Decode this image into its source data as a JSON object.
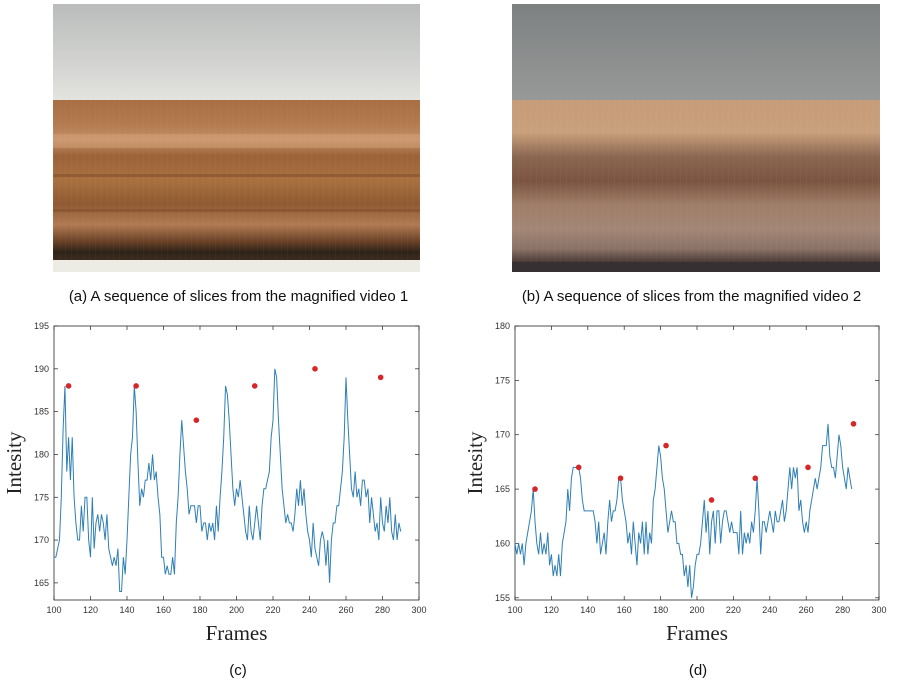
{
  "panels": {
    "a": {
      "caption": "(a) A sequence of slices from the magnified video 1"
    },
    "b": {
      "caption": "(b) A sequence of slices from the magnified video 2"
    },
    "c": {
      "caption": "(c)"
    },
    "d": {
      "caption": "(d)"
    }
  },
  "colors": {
    "line": "#2f7fb5",
    "peak": "#d62728",
    "axis": "#404040",
    "frame": "#262626"
  },
  "chart_data": [
    {
      "type": "line",
      "xlabel": "Frames",
      "ylabel": "Intesity",
      "xlim": [
        100,
        300
      ],
      "ylim": [
        163,
        195
      ],
      "xticks": [
        100,
        120,
        140,
        160,
        180,
        200,
        220,
        240,
        260,
        280,
        300
      ],
      "yticks": [
        165,
        170,
        175,
        180,
        185,
        190,
        195
      ],
      "grid": false,
      "x_start": 99,
      "values": [
        165,
        168,
        168,
        169,
        170,
        175,
        183,
        188,
        178,
        182,
        177,
        182,
        175,
        172,
        170,
        170,
        174,
        171,
        175,
        175,
        170,
        168,
        175,
        169,
        172,
        173,
        171,
        173,
        172,
        170,
        173,
        169,
        168,
        167,
        168,
        167,
        169,
        164,
        164,
        168,
        166,
        170,
        175,
        180,
        182,
        188,
        185,
        179,
        174,
        176,
        175,
        177,
        177,
        179,
        177,
        180,
        177,
        178,
        175,
        173,
        168,
        168,
        166,
        167,
        166,
        166,
        168,
        166,
        172,
        175,
        180,
        184,
        181,
        178,
        176,
        173,
        174,
        174,
        174,
        172,
        174,
        174,
        171,
        172,
        172,
        170,
        172,
        171,
        172,
        170,
        174,
        171,
        175,
        178,
        182,
        188,
        187,
        184,
        180,
        176,
        174,
        176,
        175,
        177,
        175,
        173,
        171,
        170,
        174,
        171,
        170,
        172,
        174,
        172,
        170,
        174,
        176,
        176,
        177,
        178,
        182,
        184,
        190,
        189,
        184,
        180,
        176,
        174,
        172,
        173,
        172,
        172,
        171,
        173,
        176,
        174,
        177,
        174,
        176,
        173,
        171,
        170,
        168,
        172,
        169,
        168,
        167,
        170,
        171,
        170,
        167,
        170,
        165,
        170,
        172,
        172,
        174,
        174,
        176,
        178,
        182,
        189,
        184,
        180,
        176,
        175,
        178,
        175,
        176,
        174,
        177,
        177,
        175,
        176,
        172,
        175,
        173,
        171,
        172,
        170,
        175,
        172,
        171,
        174,
        172,
        175,
        171,
        170,
        173,
        170,
        172,
        171
      ],
      "peaks": [
        [
          108,
          188
        ],
        [
          145,
          188
        ],
        [
          178,
          184
        ],
        [
          210,
          188
        ],
        [
          243,
          190
        ],
        [
          279,
          189
        ]
      ]
    },
    {
      "type": "line",
      "xlabel": "Frames",
      "ylabel": "Intesity",
      "xlim": [
        100,
        300
      ],
      "ylim": [
        154.8,
        180
      ],
      "xticks": [
        100,
        120,
        140,
        160,
        180,
        200,
        220,
        240,
        260,
        280,
        300
      ],
      "yticks": [
        155,
        160,
        165,
        170,
        175,
        180
      ],
      "grid": false,
      "x_start": 99,
      "values": [
        160,
        160,
        159,
        160,
        159,
        160,
        158,
        160,
        161,
        162,
        163,
        165,
        162,
        160,
        159,
        161,
        159,
        160,
        159,
        161,
        158,
        159,
        157,
        158,
        157,
        159,
        157,
        160,
        161,
        162,
        165,
        163,
        166,
        167,
        167,
        167,
        167,
        166,
        164,
        163,
        163,
        163,
        163,
        163,
        163,
        162,
        160,
        162,
        159,
        160,
        161,
        159,
        162,
        164,
        162,
        163,
        163,
        164,
        166,
        166,
        164,
        163,
        162,
        160,
        161,
        159,
        162,
        160,
        158,
        161,
        160,
        162,
        159,
        162,
        159,
        161,
        160,
        164,
        165,
        167,
        169,
        168,
        166,
        165,
        163,
        161,
        162,
        163,
        162,
        162,
        160,
        160,
        159,
        159,
        157,
        158,
        156,
        158,
        155,
        156,
        158,
        159,
        159,
        160,
        162,
        164,
        161,
        163,
        159,
        162,
        163,
        160,
        163,
        163,
        160,
        162,
        163,
        163,
        162,
        161,
        162,
        161,
        161,
        161,
        159,
        163,
        159,
        161,
        160,
        161,
        160,
        162,
        161,
        163,
        166,
        163,
        159,
        162,
        162,
        161,
        162,
        163,
        162,
        161,
        163,
        162,
        162,
        163,
        164,
        162,
        163,
        165,
        167,
        165,
        167,
        166,
        167,
        163,
        164,
        162,
        161,
        162,
        161,
        163,
        164,
        165,
        166,
        165,
        166,
        167,
        169,
        169,
        169,
        171,
        168,
        167,
        167,
        166,
        168,
        170,
        169,
        167,
        166,
        165,
        167,
        166,
        165
      ],
      "peaks": [
        [
          111,
          165
        ],
        [
          135,
          167
        ],
        [
          158,
          166
        ],
        [
          183,
          169
        ],
        [
          208,
          164
        ],
        [
          232,
          166
        ],
        [
          261,
          167
        ],
        [
          286,
          171
        ]
      ]
    }
  ]
}
